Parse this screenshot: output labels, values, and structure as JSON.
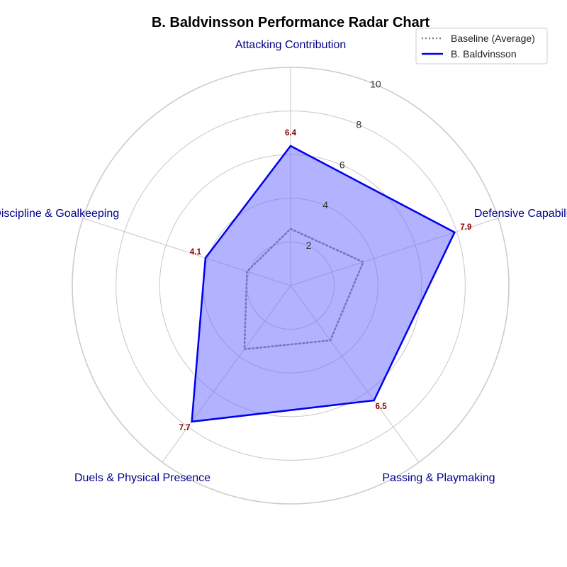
{
  "chart_data": {
    "type": "radar",
    "title": "B. Baldvinsson Performance Radar Chart",
    "axes": [
      "Attacking Contribution",
      "Defensive Capability",
      "Passing & Playmaking",
      "Duels & Physical Presence",
      "Discipline & Goalkeeping"
    ],
    "rlim": [
      0,
      10
    ],
    "rticks": [
      2,
      4,
      6,
      8,
      10
    ],
    "grid": true,
    "legend_position": "top-right",
    "series": [
      {
        "name": "Baseline (Average)",
        "values": [
          2.6,
          3.5,
          3.1,
          3.6,
          2.1
        ],
        "style": "dotted",
        "color": "#808080",
        "fill": false
      },
      {
        "name": "B. Baldvinsson",
        "values": [
          6.4,
          7.9,
          6.5,
          7.7,
          4.1
        ],
        "value_labels": [
          "6.4",
          "7.9",
          "6.5",
          "7.7",
          "4.1"
        ],
        "style": "solid",
        "color": "#0000ee",
        "fill": true,
        "fill_color": "#6666ff"
      }
    ],
    "colors": {
      "title": "#00008b",
      "axis_label": "#00008b",
      "value_label": "#8b0000",
      "grid": "#cccccc"
    }
  }
}
